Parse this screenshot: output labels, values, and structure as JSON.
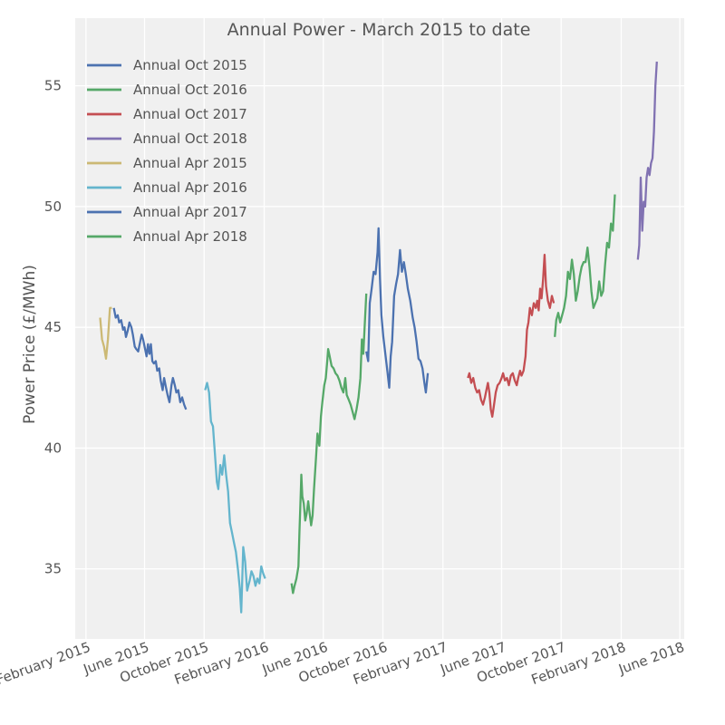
{
  "chart_data": {
    "type": "line",
    "title": "Annual Power - March 2015 to date",
    "xlabel": "",
    "ylabel": "Power Price (£/MWh)",
    "ylim": [
      32.1,
      57.8
    ],
    "xlim": [
      "2015-01-10",
      "2018-06-10"
    ],
    "grid": true,
    "legend_position": "top-left",
    "x_ticks": [
      {
        "date": "2015-02-01",
        "label": "February 2015"
      },
      {
        "date": "2015-06-01",
        "label": "June 2015"
      },
      {
        "date": "2015-10-01",
        "label": "October 2015"
      },
      {
        "date": "2016-02-01",
        "label": "February 2016"
      },
      {
        "date": "2016-06-01",
        "label": "June 2016"
      },
      {
        "date": "2016-10-01",
        "label": "October 2016"
      },
      {
        "date": "2017-02-01",
        "label": "February 2017"
      },
      {
        "date": "2017-06-01",
        "label": "June 2017"
      },
      {
        "date": "2017-10-01",
        "label": "October 2017"
      },
      {
        "date": "2018-02-01",
        "label": "February 2018"
      },
      {
        "date": "2018-06-01",
        "label": "June 2018"
      }
    ],
    "y_ticks": [
      35,
      40,
      45,
      50,
      55
    ],
    "series": [
      {
        "name": "Annual Oct 2015",
        "color": "#4c72b0",
        "points": [
          [
            "2015-03-30",
            45.8
          ],
          [
            "2015-04-03",
            45.4
          ],
          [
            "2015-04-07",
            45.5
          ],
          [
            "2015-04-10",
            45.2
          ],
          [
            "2015-04-14",
            45.3
          ],
          [
            "2015-04-18",
            44.9
          ],
          [
            "2015-04-21",
            45.0
          ],
          [
            "2015-04-24",
            44.6
          ],
          [
            "2015-04-28",
            44.9
          ],
          [
            "2015-05-01",
            45.2
          ],
          [
            "2015-05-05",
            45.0
          ],
          [
            "2015-05-08",
            44.7
          ],
          [
            "2015-05-12",
            44.2
          ],
          [
            "2015-05-15",
            44.1
          ],
          [
            "2015-05-19",
            44.0
          ],
          [
            "2015-05-22",
            44.3
          ],
          [
            "2015-05-26",
            44.7
          ],
          [
            "2015-05-29",
            44.5
          ],
          [
            "2015-06-02",
            44.1
          ],
          [
            "2015-06-05",
            43.8
          ],
          [
            "2015-06-08",
            44.3
          ],
          [
            "2015-06-11",
            43.9
          ],
          [
            "2015-06-14",
            44.3
          ],
          [
            "2015-06-17",
            43.6
          ],
          [
            "2015-06-20",
            43.5
          ],
          [
            "2015-06-24",
            43.6
          ],
          [
            "2015-06-27",
            43.2
          ],
          [
            "2015-07-01",
            43.3
          ],
          [
            "2015-07-04",
            42.8
          ],
          [
            "2015-07-08",
            42.4
          ],
          [
            "2015-07-11",
            42.9
          ],
          [
            "2015-07-15",
            42.5
          ],
          [
            "2015-07-18",
            42.2
          ],
          [
            "2015-07-22",
            41.9
          ],
          [
            "2015-07-26",
            42.6
          ],
          [
            "2015-07-29",
            42.9
          ],
          [
            "2015-08-02",
            42.6
          ],
          [
            "2015-08-05",
            42.3
          ],
          [
            "2015-08-09",
            42.4
          ],
          [
            "2015-08-13",
            41.9
          ],
          [
            "2015-08-17",
            42.1
          ],
          [
            "2015-08-21",
            41.8
          ],
          [
            "2015-08-25",
            41.6
          ]
        ]
      },
      {
        "name": "Annual Oct 2016",
        "color": "#55a868",
        "points": [
          [
            "2016-03-28",
            34.4
          ],
          [
            "2016-03-31",
            34.0
          ],
          [
            "2016-04-03",
            34.3
          ],
          [
            "2016-04-07",
            34.6
          ],
          [
            "2016-04-11",
            35.1
          ],
          [
            "2016-04-13",
            36.5
          ],
          [
            "2016-04-15",
            37.6
          ],
          [
            "2016-04-17",
            38.9
          ],
          [
            "2016-04-19",
            38.0
          ],
          [
            "2016-04-22",
            37.7
          ],
          [
            "2016-04-25",
            37.0
          ],
          [
            "2016-04-28",
            37.3
          ],
          [
            "2016-05-01",
            37.8
          ],
          [
            "2016-05-04",
            37.3
          ],
          [
            "2016-05-07",
            36.8
          ],
          [
            "2016-05-10",
            37.2
          ],
          [
            "2016-05-13",
            38.3
          ],
          [
            "2016-05-17",
            39.6
          ],
          [
            "2016-05-20",
            40.6
          ],
          [
            "2016-05-24",
            40.1
          ],
          [
            "2016-05-27",
            41.3
          ],
          [
            "2016-05-30",
            41.9
          ],
          [
            "2016-06-03",
            42.6
          ],
          [
            "2016-06-06",
            42.9
          ],
          [
            "2016-06-09",
            43.6
          ],
          [
            "2016-06-11",
            44.1
          ],
          [
            "2016-06-14",
            43.8
          ],
          [
            "2016-06-18",
            43.4
          ],
          [
            "2016-06-22",
            43.3
          ],
          [
            "2016-06-26",
            43.1
          ],
          [
            "2016-06-30",
            43.0
          ],
          [
            "2016-07-04",
            42.8
          ],
          [
            "2016-07-08",
            42.5
          ],
          [
            "2016-07-12",
            42.3
          ],
          [
            "2016-07-16",
            42.9
          ],
          [
            "2016-07-19",
            42.2
          ],
          [
            "2016-07-23",
            42.0
          ],
          [
            "2016-07-27",
            41.8
          ],
          [
            "2016-07-31",
            41.5
          ],
          [
            "2016-08-04",
            41.2
          ],
          [
            "2016-08-08",
            41.6
          ],
          [
            "2016-08-12",
            42.1
          ],
          [
            "2016-08-16",
            42.9
          ],
          [
            "2016-08-19",
            44.5
          ],
          [
            "2016-08-22",
            43.9
          ],
          [
            "2016-08-25",
            45.2
          ],
          [
            "2016-08-28",
            46.4
          ]
        ]
      },
      {
        "name": "Annual Oct 2017",
        "color": "#c44e52",
        "points": [
          [
            "2017-03-24",
            42.9
          ],
          [
            "2017-03-27",
            43.1
          ],
          [
            "2017-03-31",
            42.7
          ],
          [
            "2017-04-04",
            42.9
          ],
          [
            "2017-04-08",
            42.5
          ],
          [
            "2017-04-12",
            42.3
          ],
          [
            "2017-04-16",
            42.4
          ],
          [
            "2017-04-20",
            42.0
          ],
          [
            "2017-04-24",
            41.8
          ],
          [
            "2017-04-28",
            42.1
          ],
          [
            "2017-05-01",
            42.4
          ],
          [
            "2017-05-04",
            42.7
          ],
          [
            "2017-05-07",
            42.3
          ],
          [
            "2017-05-10",
            41.6
          ],
          [
            "2017-05-13",
            41.3
          ],
          [
            "2017-05-16",
            41.7
          ],
          [
            "2017-05-20",
            42.3
          ],
          [
            "2017-05-24",
            42.6
          ],
          [
            "2017-05-28",
            42.7
          ],
          [
            "2017-06-01",
            42.9
          ],
          [
            "2017-06-04",
            43.1
          ],
          [
            "2017-06-08",
            42.8
          ],
          [
            "2017-06-12",
            42.9
          ],
          [
            "2017-06-16",
            42.6
          ],
          [
            "2017-06-20",
            43.0
          ],
          [
            "2017-06-24",
            43.1
          ],
          [
            "2017-06-28",
            42.8
          ],
          [
            "2017-07-02",
            42.6
          ],
          [
            "2017-07-05",
            42.9
          ],
          [
            "2017-07-09",
            43.2
          ],
          [
            "2017-07-12",
            43.0
          ],
          [
            "2017-07-16",
            43.2
          ],
          [
            "2017-07-20",
            43.8
          ],
          [
            "2017-07-23",
            44.9
          ],
          [
            "2017-07-26",
            45.2
          ],
          [
            "2017-07-29",
            45.8
          ],
          [
            "2017-08-02",
            45.5
          ],
          [
            "2017-08-06",
            46.0
          ],
          [
            "2017-08-10",
            45.8
          ],
          [
            "2017-08-13",
            46.1
          ],
          [
            "2017-08-16",
            45.7
          ],
          [
            "2017-08-19",
            46.6
          ],
          [
            "2017-08-22",
            46.2
          ],
          [
            "2017-08-25",
            47.0
          ],
          [
            "2017-08-28",
            48.0
          ],
          [
            "2017-08-31",
            46.7
          ],
          [
            "2017-09-04",
            46.1
          ],
          [
            "2017-09-08",
            45.8
          ],
          [
            "2017-09-12",
            46.3
          ],
          [
            "2017-09-16",
            46.0
          ]
        ]
      },
      {
        "name": "Annual Oct 2018",
        "color": "#8172b2",
        "points": [
          [
            "2018-03-07",
            47.8
          ],
          [
            "2018-03-10",
            48.4
          ],
          [
            "2018-03-13",
            51.2
          ],
          [
            "2018-03-16",
            49.0
          ],
          [
            "2018-03-19",
            50.2
          ],
          [
            "2018-03-22",
            50.0
          ],
          [
            "2018-03-25",
            51.2
          ],
          [
            "2018-03-28",
            51.6
          ],
          [
            "2018-03-31",
            51.3
          ],
          [
            "2018-04-03",
            51.8
          ],
          [
            "2018-04-06",
            52.0
          ],
          [
            "2018-04-09",
            53.1
          ],
          [
            "2018-04-12",
            55.0
          ],
          [
            "2018-04-15",
            56.0
          ]
        ]
      },
      {
        "name": "Annual Apr 2015",
        "color": "#ccb974",
        "points": [
          [
            "2015-03-02",
            45.4
          ],
          [
            "2015-03-06",
            44.5
          ],
          [
            "2015-03-10",
            44.2
          ],
          [
            "2015-03-14",
            43.7
          ],
          [
            "2015-03-18",
            44.5
          ],
          [
            "2015-03-22",
            45.8
          ],
          [
            "2015-03-26",
            45.8
          ]
        ]
      },
      {
        "name": "Annual Apr 2016",
        "color": "#64b5cd",
        "points": [
          [
            "2015-10-03",
            42.4
          ],
          [
            "2015-10-07",
            42.7
          ],
          [
            "2015-10-11",
            42.3
          ],
          [
            "2015-10-15",
            41.1
          ],
          [
            "2015-10-19",
            40.9
          ],
          [
            "2015-10-23",
            39.8
          ],
          [
            "2015-10-27",
            38.6
          ],
          [
            "2015-10-30",
            38.3
          ],
          [
            "2015-11-03",
            39.3
          ],
          [
            "2015-11-07",
            38.9
          ],
          [
            "2015-11-11",
            39.7
          ],
          [
            "2015-11-15",
            38.9
          ],
          [
            "2015-11-19",
            38.2
          ],
          [
            "2015-11-23",
            36.9
          ],
          [
            "2015-11-27",
            36.5
          ],
          [
            "2015-12-01",
            36.1
          ],
          [
            "2015-12-05",
            35.7
          ],
          [
            "2015-12-09",
            35.0
          ],
          [
            "2015-12-13",
            34.2
          ],
          [
            "2015-12-16",
            33.2
          ],
          [
            "2015-12-20",
            35.9
          ],
          [
            "2015-12-24",
            35.3
          ],
          [
            "2015-12-28",
            34.1
          ],
          [
            "2016-01-02",
            34.5
          ],
          [
            "2016-01-06",
            34.9
          ],
          [
            "2016-01-10",
            34.7
          ],
          [
            "2016-01-14",
            34.3
          ],
          [
            "2016-01-18",
            34.6
          ],
          [
            "2016-01-22",
            34.4
          ],
          [
            "2016-01-26",
            35.1
          ],
          [
            "2016-01-30",
            34.8
          ],
          [
            "2016-02-03",
            34.6
          ]
        ]
      },
      {
        "name": "Annual Apr 2017",
        "color": "#4c72b0",
        "points": [
          [
            "2016-08-28",
            44.0
          ],
          [
            "2016-09-01",
            43.6
          ],
          [
            "2016-09-04",
            46.0
          ],
          [
            "2016-09-08",
            46.6
          ],
          [
            "2016-09-12",
            47.3
          ],
          [
            "2016-09-16",
            47.2
          ],
          [
            "2016-09-20",
            48.1
          ],
          [
            "2016-09-22",
            49.1
          ],
          [
            "2016-09-25",
            47.0
          ],
          [
            "2016-09-28",
            45.5
          ],
          [
            "2016-10-02",
            44.6
          ],
          [
            "2016-10-06",
            43.9
          ],
          [
            "2016-10-10",
            43.2
          ],
          [
            "2016-10-14",
            42.5
          ],
          [
            "2016-10-17",
            43.8
          ],
          [
            "2016-10-20",
            44.4
          ],
          [
            "2016-10-24",
            46.3
          ],
          [
            "2016-10-28",
            46.8
          ],
          [
            "2016-11-01",
            47.2
          ],
          [
            "2016-11-05",
            48.2
          ],
          [
            "2016-11-09",
            47.3
          ],
          [
            "2016-11-13",
            47.7
          ],
          [
            "2016-11-17",
            47.2
          ],
          [
            "2016-11-21",
            46.6
          ],
          [
            "2016-11-26",
            46.1
          ],
          [
            "2016-12-01",
            45.4
          ],
          [
            "2016-12-05",
            45.0
          ],
          [
            "2016-12-09",
            44.4
          ],
          [
            "2016-12-13",
            43.7
          ],
          [
            "2016-12-17",
            43.6
          ],
          [
            "2016-12-21",
            43.3
          ],
          [
            "2016-12-25",
            42.7
          ],
          [
            "2016-12-28",
            42.3
          ],
          [
            "2017-01-01",
            43.1
          ]
        ]
      },
      {
        "name": "Annual Apr 2018",
        "color": "#55a868",
        "points": [
          [
            "2017-09-18",
            44.6
          ],
          [
            "2017-09-21",
            45.3
          ],
          [
            "2017-09-25",
            45.6
          ],
          [
            "2017-09-29",
            45.2
          ],
          [
            "2017-10-03",
            45.5
          ],
          [
            "2017-10-07",
            45.8
          ],
          [
            "2017-10-11",
            46.3
          ],
          [
            "2017-10-15",
            47.3
          ],
          [
            "2017-10-19",
            47.0
          ],
          [
            "2017-10-23",
            47.8
          ],
          [
            "2017-10-27",
            47.2
          ],
          [
            "2017-10-31",
            46.1
          ],
          [
            "2017-11-04",
            46.5
          ],
          [
            "2017-11-08",
            47.1
          ],
          [
            "2017-11-12",
            47.5
          ],
          [
            "2017-11-16",
            47.7
          ],
          [
            "2017-11-20",
            47.7
          ],
          [
            "2017-11-24",
            48.3
          ],
          [
            "2017-11-28",
            47.5
          ],
          [
            "2017-12-02",
            46.5
          ],
          [
            "2017-12-06",
            45.8
          ],
          [
            "2017-12-10",
            46.0
          ],
          [
            "2017-12-14",
            46.2
          ],
          [
            "2017-12-18",
            46.9
          ],
          [
            "2017-12-22",
            46.3
          ],
          [
            "2017-12-26",
            46.5
          ],
          [
            "2017-12-30",
            47.6
          ],
          [
            "2018-01-03",
            48.5
          ],
          [
            "2018-01-07",
            48.3
          ],
          [
            "2018-01-11",
            49.3
          ],
          [
            "2018-01-15",
            49.0
          ],
          [
            "2018-01-19",
            50.5
          ]
        ]
      }
    ]
  }
}
